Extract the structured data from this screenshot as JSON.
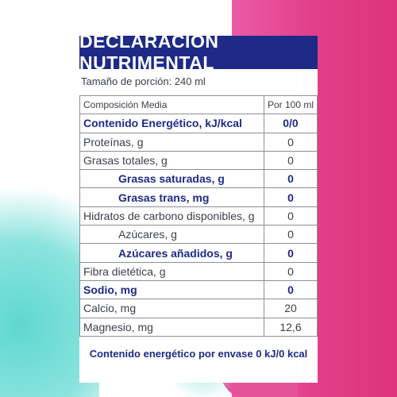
{
  "title": "DECLARACIÓN NUTRIMENTAL",
  "portion": "Tamaño de porción: 240 ml",
  "table": {
    "header": {
      "label": "Composición Media",
      "value": "Por 100 ml"
    },
    "rows": [
      {
        "label": "Contenido Energético, kJ/kcal",
        "value": "0/0",
        "bold": true,
        "indent": false
      },
      {
        "label": "Proteínas, g",
        "value": "0",
        "bold": false,
        "indent": false
      },
      {
        "label": "Grasas totales, g",
        "value": "0",
        "bold": false,
        "indent": false
      },
      {
        "label": "Grasas saturadas, g",
        "value": "0",
        "bold": true,
        "indent": true
      },
      {
        "label": "Grasas trans, mg",
        "value": "0",
        "bold": true,
        "indent": true
      },
      {
        "label": "Hidratos de carbono disponibles, g",
        "value": "0",
        "bold": false,
        "indent": false
      },
      {
        "label": "Azúcares, g",
        "value": "0",
        "bold": false,
        "indent": true
      },
      {
        "label": "Azúcares añadidos, g",
        "value": "0",
        "bold": true,
        "indent": true
      },
      {
        "label": "Fibra dietética, g",
        "value": "0",
        "bold": false,
        "indent": false
      },
      {
        "label": "Sodio, mg",
        "value": "0",
        "bold": true,
        "indent": false
      },
      {
        "label": "Calcio, mg",
        "value": "20",
        "bold": false,
        "indent": false
      },
      {
        "label": "Magnesio, mg",
        "value": "12,6",
        "bold": false,
        "indent": false
      }
    ]
  },
  "footer": "Contenido energético por envase 0 kJ/0 kcal"
}
